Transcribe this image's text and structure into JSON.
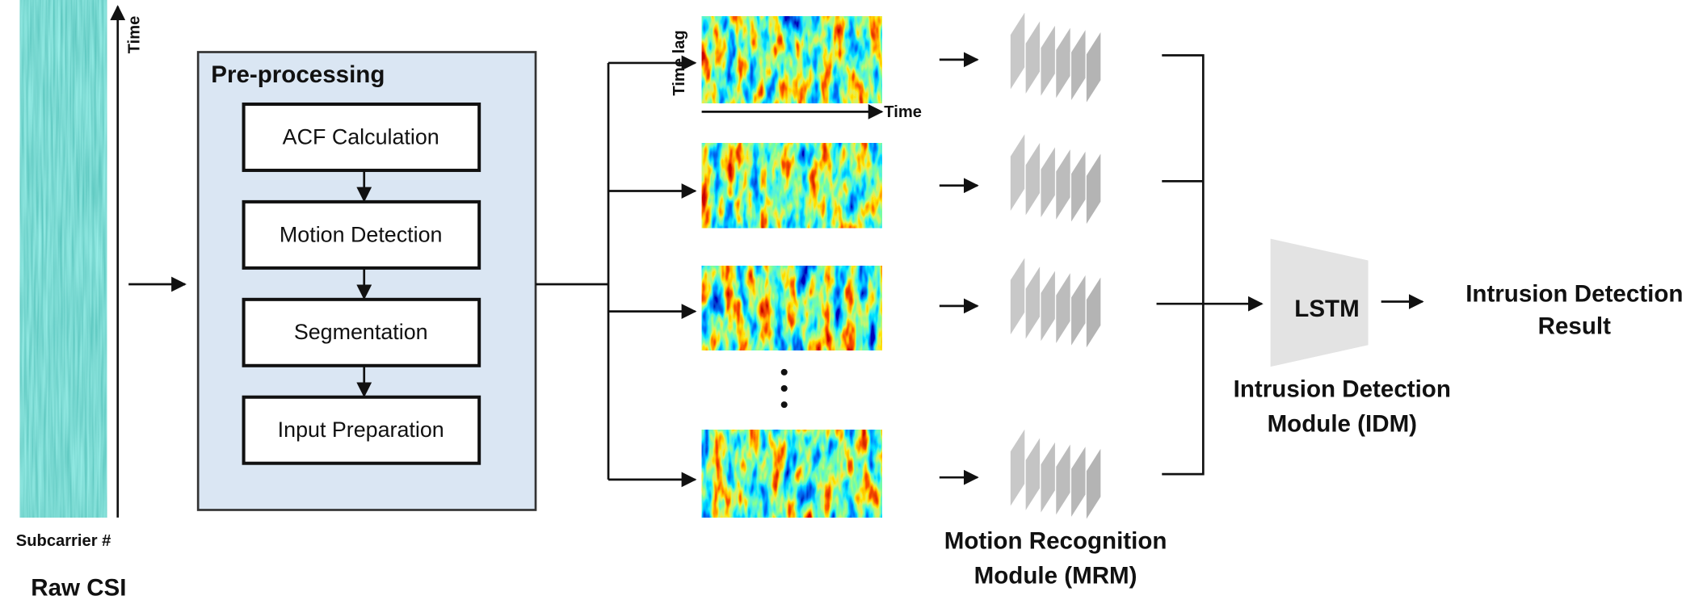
{
  "raw_csi": {
    "title": "Raw CSI",
    "x_label": "Subcarrier #",
    "y_label": "Time"
  },
  "preprocessing": {
    "title": "Pre-processing",
    "steps": [
      "ACF Calculation",
      "Motion Detection",
      "Segmentation",
      "Input Preparation"
    ]
  },
  "heatmap_axes": {
    "y_label": "Time lag",
    "x_label": "Time"
  },
  "mrm": {
    "label_lines": [
      "Motion Recognition",
      "Module (MRM)"
    ]
  },
  "lstm": {
    "label": "LSTM"
  },
  "idm": {
    "label_lines": [
      "Intrusion Detection",
      "Module (IDM)"
    ]
  },
  "result": {
    "label_lines": [
      "Intrusion Detection",
      "Result"
    ]
  }
}
